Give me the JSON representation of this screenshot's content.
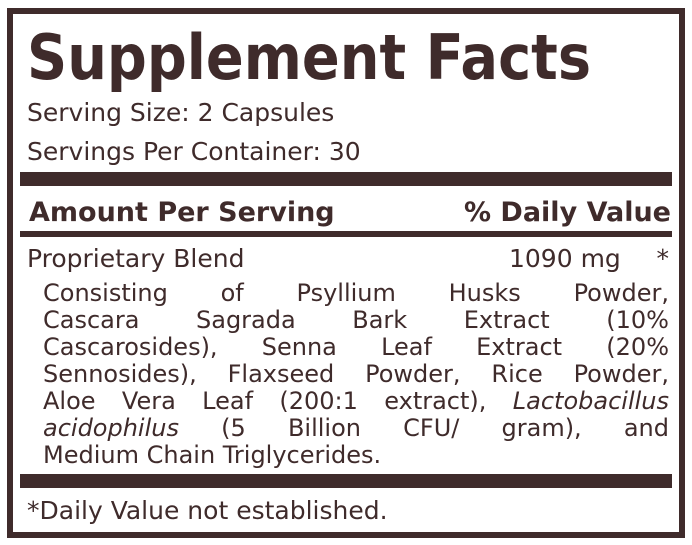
{
  "title": "Supplement Facts",
  "serving_size": "Serving Size: 2 Capsules",
  "servings_per_container": "Servings Per Container: 30",
  "header": {
    "amount": "Amount Per Serving",
    "daily_value": "% Daily Value"
  },
  "blend": {
    "name": "Proprietary Blend",
    "amount": "1090 mg",
    "daily_value": "*",
    "lines": [
      [
        {
          "t": "Consisting of Psyllium Husks Powder,"
        }
      ],
      [
        {
          "t": "Cascara Sagrada Bark Extract (10%"
        }
      ],
      [
        {
          "t": "Cascarosides), Senna Leaf Extract (20%"
        }
      ],
      [
        {
          "t": "Sennosides), Flaxseed Powder, Rice Powder,"
        }
      ],
      [
        {
          "t": "Aloe Vera Leaf (200:1 extract), "
        },
        {
          "t": "Lactobacillus",
          "i": true
        }
      ],
      [
        {
          "t": "acidophilus",
          "i": true
        },
        {
          "t": " (5 Billion CFU/ gram), and"
        }
      ],
      [
        {
          "t": "Medium Chain Triglycerides."
        }
      ]
    ]
  },
  "footer": "*Daily Value not established.",
  "colors": {
    "ink": "#3f2b2b",
    "background": "#ffffff"
  }
}
